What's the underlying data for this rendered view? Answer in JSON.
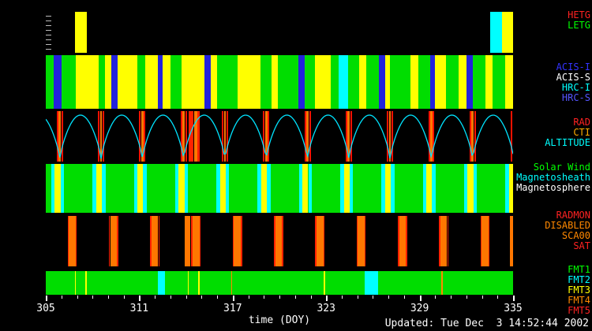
{
  "footer": {
    "updated": "Updated: Tue Dec  3 14:52:44 2002"
  },
  "chart_data": {
    "type": "timeline-bands",
    "x": {
      "min": 305,
      "max": 335,
      "unit": "DOY",
      "title": "time (DOY)",
      "major_ticks": [
        305,
        311,
        317,
        323,
        329,
        335
      ],
      "minor_tick_step": 1
    },
    "orbit": {
      "period_days": 2.65,
      "first_perigee_doy": 305.9,
      "curve_color": "#00e4ff"
    },
    "perigees": [
      305.9,
      308.55,
      311.2,
      313.85,
      316.5,
      319.15,
      321.8,
      324.45,
      327.1,
      329.75,
      332.4,
      335.05
    ],
    "bands": [
      {
        "id": "grating",
        "base": "#000000",
        "left_ruler": true,
        "legend": [
          {
            "text": "HETG",
            "color": "#ff2222"
          },
          {
            "text": "LETG",
            "color": "#00ff00"
          }
        ],
        "segments": [
          {
            "s": 306.85,
            "e": 307.65,
            "c": "#ffff00"
          },
          {
            "s": 333.55,
            "e": 334.3,
            "c": "#00ffff"
          },
          {
            "s": 334.3,
            "e": 335.0,
            "c": "#ffff00"
          }
        ]
      },
      {
        "id": "instruments",
        "base": "#00dd00",
        "legend": [
          {
            "text": "ACIS-I",
            "color": "#3333ff"
          },
          {
            "text": "ACIS-S",
            "color": "#ffffff"
          },
          {
            "text": "HRC-I",
            "color": "#00ffff"
          },
          {
            "text": "HRC-S",
            "color": "#5555ff"
          }
        ],
        "segments": [
          {
            "s": 305.5,
            "e": 306.0,
            "c": "#2222dd"
          },
          {
            "s": 306.9,
            "e": 308.4,
            "c": "#ffff00"
          },
          {
            "s": 308.8,
            "e": 309.2,
            "c": "#ffff00"
          },
          {
            "s": 309.2,
            "e": 309.6,
            "c": "#2222dd"
          },
          {
            "s": 309.6,
            "e": 310.9,
            "c": "#ffff00"
          },
          {
            "s": 311.4,
            "e": 312.2,
            "c": "#ffff00"
          },
          {
            "s": 312.2,
            "e": 312.5,
            "c": "#2222dd"
          },
          {
            "s": 312.5,
            "e": 313.0,
            "c": "#ffff00"
          },
          {
            "s": 313.7,
            "e": 315.2,
            "c": "#ffff00"
          },
          {
            "s": 315.2,
            "e": 315.6,
            "c": "#2222dd"
          },
          {
            "s": 315.6,
            "e": 316.0,
            "c": "#ffff00"
          },
          {
            "s": 317.3,
            "e": 318.8,
            "c": "#ffff00"
          },
          {
            "s": 319.5,
            "e": 319.9,
            "c": "#ffff00"
          },
          {
            "s": 321.2,
            "e": 321.6,
            "c": "#2222dd"
          },
          {
            "s": 322.3,
            "e": 323.3,
            "c": "#ffff00"
          },
          {
            "s": 323.8,
            "e": 324.4,
            "c": "#00ffff"
          },
          {
            "s": 325.1,
            "e": 325.6,
            "c": "#ffff00"
          },
          {
            "s": 326.4,
            "e": 326.8,
            "c": "#2222dd"
          },
          {
            "s": 326.8,
            "e": 327.1,
            "c": "#ffff00"
          },
          {
            "s": 328.4,
            "e": 328.9,
            "c": "#ffff00"
          },
          {
            "s": 329.7,
            "e": 330.0,
            "c": "#2222dd"
          },
          {
            "s": 330.0,
            "e": 330.7,
            "c": "#ffff00"
          },
          {
            "s": 331.5,
            "e": 332.0,
            "c": "#ffff00"
          },
          {
            "s": 332.0,
            "e": 332.4,
            "c": "#2222dd"
          },
          {
            "s": 333.2,
            "e": 333.7,
            "c": "#ffff00"
          },
          {
            "s": 334.5,
            "e": 335.0,
            "c": "#ffff00"
          }
        ]
      },
      {
        "id": "altitude",
        "base": "#000000",
        "altitude_curve": true,
        "legend": [
          {
            "text": "RAD",
            "color": "#ff2222"
          },
          {
            "text": "CTI",
            "color": "#ffaa00"
          },
          {
            "text": "ALTITUDE",
            "color": "#00ffff"
          }
        ],
        "perigee_stripes": [
          {
            "from": -0.2,
            "to": -0.1,
            "c": "#ff1100"
          },
          {
            "from": -0.07,
            "to": 0.07,
            "c": "#ff7700"
          },
          {
            "from": 0.1,
            "to": 0.2,
            "c": "#ff1100"
          }
        ],
        "segments": [
          {
            "s": 314.15,
            "e": 314.5,
            "c": "#ff2200"
          },
          {
            "s": 314.5,
            "e": 314.72,
            "c": "#ff7700"
          },
          {
            "s": 314.72,
            "e": 314.9,
            "c": "#ff2200"
          }
        ]
      },
      {
        "id": "regions",
        "base": "#00dd00",
        "legend": [
          {
            "text": "Solar Wind",
            "color": "#00ff00"
          },
          {
            "text": "Magnetosheath",
            "color": "#00ffff"
          },
          {
            "text": "Magnetosphere",
            "color": "#ffffff"
          }
        ],
        "perigee_stripes": [
          {
            "from": -0.55,
            "to": -0.32,
            "c": "#00ffff"
          },
          {
            "from": -0.32,
            "to": 0.05,
            "c": "#ffff00"
          },
          {
            "from": 0.05,
            "to": 0.28,
            "c": "#00ffff"
          }
        ],
        "segments": []
      },
      {
        "id": "radmon",
        "base": "#000000",
        "legend": [
          {
            "text": "RADMON",
            "color": "#ff2222"
          },
          {
            "text": "DISABLED",
            "color": "#ff8800"
          },
          {
            "text": "SCA00",
            "color": "#ff8800"
          },
          {
            "text": "SAT",
            "color": "#ff2222"
          }
        ],
        "perigee_stripes": [
          {
            "from": 0.5,
            "to": 0.58,
            "c": "#ff2200"
          },
          {
            "from": 0.58,
            "to": 1.02,
            "c": "#ff7700"
          },
          {
            "from": 1.02,
            "to": 1.1,
            "c": "#ff2200"
          }
        ],
        "segments": [
          {
            "s": 313.9,
            "e": 314.3,
            "c": "#ff7700"
          },
          {
            "s": 314.3,
            "e": 314.42,
            "c": "#ff2200"
          },
          {
            "s": 334.82,
            "e": 335.0,
            "c": "#ff7700"
          }
        ]
      },
      {
        "id": "telemetry",
        "base": "#00dd00",
        "legend": [
          {
            "text": "FMT1",
            "color": "#00ff00"
          },
          {
            "text": "FMT2",
            "color": "#00ffff"
          },
          {
            "text": "FMT3",
            "color": "#ffff00"
          },
          {
            "text": "FMT4",
            "color": "#ff8800"
          },
          {
            "text": "FMT5",
            "color": "#ff2222"
          }
        ],
        "segments": [
          {
            "s": 312.2,
            "e": 312.65,
            "c": "#00ffff"
          },
          {
            "s": 325.45,
            "e": 326.35,
            "c": "#00ffff"
          },
          {
            "s": 306.85,
            "e": 306.93,
            "c": "#ffff00"
          },
          {
            "s": 307.55,
            "e": 307.63,
            "c": "#ffff00"
          },
          {
            "s": 314.1,
            "e": 314.18,
            "c": "#ffff00"
          },
          {
            "s": 314.8,
            "e": 314.88,
            "c": "#ffff00"
          },
          {
            "s": 322.85,
            "e": 322.93,
            "c": "#ffff00"
          },
          {
            "s": 316.9,
            "e": 316.98,
            "c": "#ff8800"
          },
          {
            "s": 330.4,
            "e": 330.48,
            "c": "#ff8800"
          }
        ]
      }
    ]
  }
}
